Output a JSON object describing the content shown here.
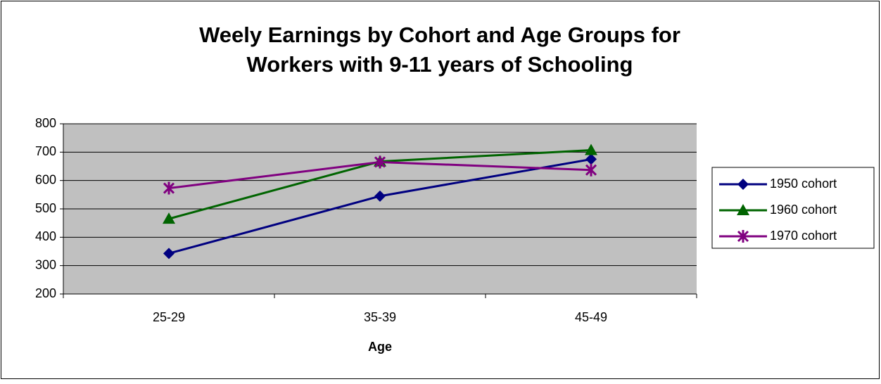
{
  "chart_data": {
    "type": "line",
    "title": [
      "Weely Earnings by Cohort and Age Groups for",
      "Workers with 9-11 years of Schooling"
    ],
    "x_label": "Age",
    "categories": [
      "25-29",
      "35-39",
      "45-49"
    ],
    "series": [
      {
        "name": "1950 cohort",
        "color": "#000080",
        "marker": "diamond",
        "values": [
          343,
          545,
          675
        ]
      },
      {
        "name": "1960 cohort",
        "color": "#006400",
        "marker": "triangle",
        "values": [
          465,
          667,
          707
        ]
      },
      {
        "name": "1970 cohort",
        "color": "#800080",
        "marker": "star",
        "values": [
          573,
          665,
          637
        ]
      }
    ],
    "ylim": [
      200,
      800
    ],
    "yticks": [
      200,
      300,
      400,
      500,
      600,
      700,
      800
    ],
    "grid": true,
    "legend": "right"
  }
}
